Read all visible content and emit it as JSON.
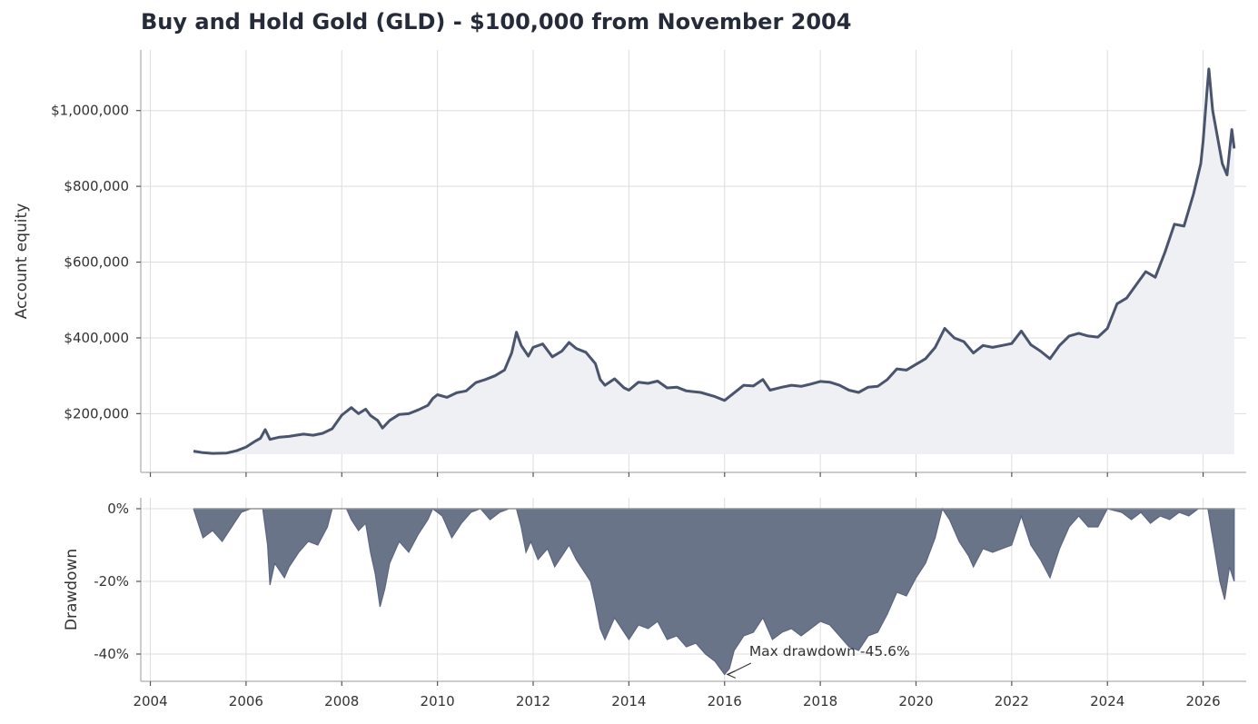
{
  "title": "Buy and Hold Gold (GLD) - $100,000 from November 2004",
  "colors": {
    "line": "#4a546d",
    "fill": "#eff0f3",
    "drawdown_fill": "#6a7489",
    "drawdown_line": "#5b6580",
    "grid": "#dddddd",
    "text": "#262b3a"
  },
  "chart_data": [
    {
      "type": "line",
      "name": "equity",
      "ylabel": "Account equity",
      "xlabel": "",
      "xlim": [
        2003.8,
        2026.9
      ],
      "ylim": [
        45000,
        1160000
      ],
      "x_ticks": [
        2004,
        2006,
        2008,
        2010,
        2012,
        2014,
        2016,
        2018,
        2020,
        2022,
        2024,
        2026
      ],
      "y_ticks": [
        200000,
        400000,
        600000,
        800000,
        1000000
      ],
      "y_tick_labels": [
        "$200,000",
        "$400,000",
        "$600,000",
        "$800,000",
        "$1,000,000"
      ],
      "grid": true,
      "fill_baseline": 93000,
      "points": [
        [
          2004.9,
          101000
        ],
        [
          2005.1,
          97000
        ],
        [
          2005.3,
          95000
        ],
        [
          2005.6,
          96000
        ],
        [
          2005.8,
          102000
        ],
        [
          2006.0,
          112000
        ],
        [
          2006.2,
          128000
        ],
        [
          2006.3,
          135000
        ],
        [
          2006.4,
          158000
        ],
        [
          2006.5,
          132000
        ],
        [
          2006.7,
          138000
        ],
        [
          2006.9,
          140000
        ],
        [
          2007.0,
          142000
        ],
        [
          2007.2,
          146000
        ],
        [
          2007.4,
          143000
        ],
        [
          2007.6,
          148000
        ],
        [
          2007.8,
          160000
        ],
        [
          2007.9,
          178000
        ],
        [
          2008.0,
          196000
        ],
        [
          2008.2,
          216000
        ],
        [
          2008.35,
          200000
        ],
        [
          2008.5,
          212000
        ],
        [
          2008.6,
          195000
        ],
        [
          2008.75,
          182000
        ],
        [
          2008.85,
          162000
        ],
        [
          2009.0,
          182000
        ],
        [
          2009.2,
          198000
        ],
        [
          2009.4,
          200000
        ],
        [
          2009.6,
          210000
        ],
        [
          2009.8,
          222000
        ],
        [
          2009.9,
          240000
        ],
        [
          2010.0,
          250000
        ],
        [
          2010.2,
          243000
        ],
        [
          2010.4,
          255000
        ],
        [
          2010.6,
          260000
        ],
        [
          2010.8,
          282000
        ],
        [
          2011.0,
          290000
        ],
        [
          2011.2,
          300000
        ],
        [
          2011.4,
          315000
        ],
        [
          2011.55,
          360000
        ],
        [
          2011.65,
          415000
        ],
        [
          2011.75,
          380000
        ],
        [
          2011.9,
          352000
        ],
        [
          2012.0,
          375000
        ],
        [
          2012.2,
          384000
        ],
        [
          2012.4,
          350000
        ],
        [
          2012.6,
          365000
        ],
        [
          2012.75,
          388000
        ],
        [
          2012.9,
          372000
        ],
        [
          2013.1,
          362000
        ],
        [
          2013.3,
          332000
        ],
        [
          2013.4,
          290000
        ],
        [
          2013.5,
          275000
        ],
        [
          2013.7,
          292000
        ],
        [
          2013.9,
          268000
        ],
        [
          2014.0,
          262000
        ],
        [
          2014.2,
          283000
        ],
        [
          2014.4,
          280000
        ],
        [
          2014.6,
          286000
        ],
        [
          2014.8,
          268000
        ],
        [
          2015.0,
          270000
        ],
        [
          2015.2,
          260000
        ],
        [
          2015.5,
          256000
        ],
        [
          2015.8,
          245000
        ],
        [
          2016.0,
          235000
        ],
        [
          2016.2,
          255000
        ],
        [
          2016.4,
          275000
        ],
        [
          2016.6,
          273000
        ],
        [
          2016.8,
          290000
        ],
        [
          2016.95,
          262000
        ],
        [
          2017.2,
          270000
        ],
        [
          2017.4,
          275000
        ],
        [
          2017.6,
          272000
        ],
        [
          2017.8,
          278000
        ],
        [
          2018.0,
          285000
        ],
        [
          2018.2,
          283000
        ],
        [
          2018.4,
          275000
        ],
        [
          2018.6,
          262000
        ],
        [
          2018.8,
          256000
        ],
        [
          2019.0,
          270000
        ],
        [
          2019.2,
          272000
        ],
        [
          2019.4,
          290000
        ],
        [
          2019.6,
          318000
        ],
        [
          2019.8,
          315000
        ],
        [
          2020.0,
          330000
        ],
        [
          2020.2,
          345000
        ],
        [
          2020.4,
          375000
        ],
        [
          2020.6,
          425000
        ],
        [
          2020.8,
          400000
        ],
        [
          2021.0,
          390000
        ],
        [
          2021.2,
          360000
        ],
        [
          2021.4,
          380000
        ],
        [
          2021.6,
          375000
        ],
        [
          2021.8,
          380000
        ],
        [
          2022.0,
          385000
        ],
        [
          2022.2,
          418000
        ],
        [
          2022.4,
          382000
        ],
        [
          2022.6,
          365000
        ],
        [
          2022.8,
          345000
        ],
        [
          2023.0,
          380000
        ],
        [
          2023.2,
          405000
        ],
        [
          2023.4,
          412000
        ],
        [
          2023.6,
          405000
        ],
        [
          2023.8,
          402000
        ],
        [
          2024.0,
          425000
        ],
        [
          2024.2,
          490000
        ],
        [
          2024.4,
          505000
        ],
        [
          2024.6,
          540000
        ],
        [
          2024.8,
          575000
        ],
        [
          2025.0,
          560000
        ],
        [
          2025.2,
          625000
        ],
        [
          2025.4,
          700000
        ],
        [
          2025.6,
          695000
        ],
        [
          2025.8,
          780000
        ],
        [
          2025.95,
          860000
        ],
        [
          2026.0,
          920000
        ],
        [
          2026.08,
          1050000
        ],
        [
          2026.12,
          1110000
        ],
        [
          2026.2,
          1000000
        ],
        [
          2026.3,
          930000
        ],
        [
          2026.4,
          860000
        ],
        [
          2026.5,
          830000
        ],
        [
          2026.6,
          950000
        ],
        [
          2026.65,
          900000
        ]
      ]
    },
    {
      "type": "area",
      "name": "drawdown",
      "ylabel": "Drawdown",
      "xlabel": "",
      "xlim": [
        2003.8,
        2026.9
      ],
      "ylim": [
        -47.5,
        3
      ],
      "x_ticks": [
        2004,
        2006,
        2008,
        2010,
        2012,
        2014,
        2016,
        2018,
        2020,
        2022,
        2024,
        2026
      ],
      "x_tick_labels": [
        "2004",
        "2006",
        "2008",
        "2010",
        "2012",
        "2014",
        "2016",
        "2018",
        "2020",
        "2022",
        "2024",
        "2026"
      ],
      "y_ticks": [
        0,
        -20,
        -40
      ],
      "y_tick_labels": [
        "0%",
        "-20%",
        "-40%"
      ],
      "grid": true,
      "annotation": {
        "text": "Max drawdown -45.6%",
        "x": 2016.0,
        "y": -45.6,
        "text_x": 2016.4,
        "text_y": -41
      },
      "points": [
        [
          2004.9,
          0
        ],
        [
          2005.0,
          -4
        ],
        [
          2005.1,
          -8
        ],
        [
          2005.3,
          -6
        ],
        [
          2005.5,
          -9
        ],
        [
          2005.7,
          -5
        ],
        [
          2005.9,
          -1
        ],
        [
          2006.1,
          0
        ],
        [
          2006.35,
          0
        ],
        [
          2006.45,
          -10
        ],
        [
          2006.5,
          -21
        ],
        [
          2006.6,
          -15
        ],
        [
          2006.8,
          -19
        ],
        [
          2006.9,
          -16
        ],
        [
          2007.1,
          -12
        ],
        [
          2007.3,
          -9
        ],
        [
          2007.5,
          -10
        ],
        [
          2007.7,
          -5
        ],
        [
          2007.8,
          0
        ],
        [
          2008.1,
          0
        ],
        [
          2008.2,
          -3
        ],
        [
          2008.35,
          -6
        ],
        [
          2008.5,
          -4
        ],
        [
          2008.6,
          -12
        ],
        [
          2008.7,
          -18
        ],
        [
          2008.8,
          -27
        ],
        [
          2008.9,
          -22
        ],
        [
          2009.0,
          -15
        ],
        [
          2009.2,
          -9
        ],
        [
          2009.4,
          -12
        ],
        [
          2009.6,
          -7
        ],
        [
          2009.8,
          -3
        ],
        [
          2009.9,
          0
        ],
        [
          2010.1,
          -2
        ],
        [
          2010.3,
          -8
        ],
        [
          2010.5,
          -4
        ],
        [
          2010.7,
          -1
        ],
        [
          2010.9,
          0
        ],
        [
          2011.1,
          -3
        ],
        [
          2011.3,
          -1
        ],
        [
          2011.5,
          0
        ],
        [
          2011.65,
          0
        ],
        [
          2011.75,
          -5
        ],
        [
          2011.85,
          -12
        ],
        [
          2011.95,
          -9
        ],
        [
          2012.1,
          -14
        ],
        [
          2012.3,
          -11
        ],
        [
          2012.45,
          -16
        ],
        [
          2012.6,
          -13
        ],
        [
          2012.75,
          -10
        ],
        [
          2012.9,
          -14
        ],
        [
          2013.0,
          -16
        ],
        [
          2013.2,
          -20
        ],
        [
          2013.3,
          -26
        ],
        [
          2013.4,
          -33
        ],
        [
          2013.5,
          -36
        ],
        [
          2013.7,
          -30
        ],
        [
          2013.9,
          -34
        ],
        [
          2014.0,
          -36
        ],
        [
          2014.2,
          -32
        ],
        [
          2014.4,
          -33
        ],
        [
          2014.6,
          -31
        ],
        [
          2014.8,
          -36
        ],
        [
          2015.0,
          -35
        ],
        [
          2015.2,
          -38
        ],
        [
          2015.4,
          -37
        ],
        [
          2015.6,
          -40
        ],
        [
          2015.8,
          -42
        ],
        [
          2016.0,
          -45.6
        ],
        [
          2016.1,
          -44
        ],
        [
          2016.2,
          -39
        ],
        [
          2016.4,
          -35
        ],
        [
          2016.6,
          -34
        ],
        [
          2016.8,
          -30
        ],
        [
          2017.0,
          -36
        ],
        [
          2017.2,
          -34
        ],
        [
          2017.4,
          -33
        ],
        [
          2017.6,
          -35
        ],
        [
          2017.8,
          -33
        ],
        [
          2018.0,
          -31
        ],
        [
          2018.2,
          -32
        ],
        [
          2018.4,
          -35
        ],
        [
          2018.6,
          -38
        ],
        [
          2018.8,
          -39
        ],
        [
          2019.0,
          -35
        ],
        [
          2019.2,
          -34
        ],
        [
          2019.4,
          -29
        ],
        [
          2019.6,
          -23
        ],
        [
          2019.8,
          -24
        ],
        [
          2020.0,
          -19
        ],
        [
          2020.2,
          -15
        ],
        [
          2020.4,
          -8
        ],
        [
          2020.55,
          0
        ],
        [
          2020.7,
          -3
        ],
        [
          2020.9,
          -9
        ],
        [
          2021.1,
          -13
        ],
        [
          2021.2,
          -16
        ],
        [
          2021.4,
          -11
        ],
        [
          2021.6,
          -12
        ],
        [
          2021.8,
          -11
        ],
        [
          2022.0,
          -10
        ],
        [
          2022.2,
          -2
        ],
        [
          2022.4,
          -10
        ],
        [
          2022.6,
          -14
        ],
        [
          2022.8,
          -19
        ],
        [
          2023.0,
          -11
        ],
        [
          2023.2,
          -5
        ],
        [
          2023.4,
          -2
        ],
        [
          2023.6,
          -5
        ],
        [
          2023.8,
          -5
        ],
        [
          2024.0,
          0
        ],
        [
          2024.3,
          -1
        ],
        [
          2024.5,
          -3
        ],
        [
          2024.7,
          -1
        ],
        [
          2024.9,
          -4
        ],
        [
          2025.1,
          -2
        ],
        [
          2025.3,
          -3
        ],
        [
          2025.5,
          -1
        ],
        [
          2025.7,
          -2
        ],
        [
          2025.9,
          0
        ],
        [
          2026.1,
          0
        ],
        [
          2026.15,
          -4
        ],
        [
          2026.25,
          -12
        ],
        [
          2026.35,
          -20
        ],
        [
          2026.45,
          -25
        ],
        [
          2026.55,
          -16
        ],
        [
          2026.65,
          -20
        ]
      ]
    }
  ]
}
